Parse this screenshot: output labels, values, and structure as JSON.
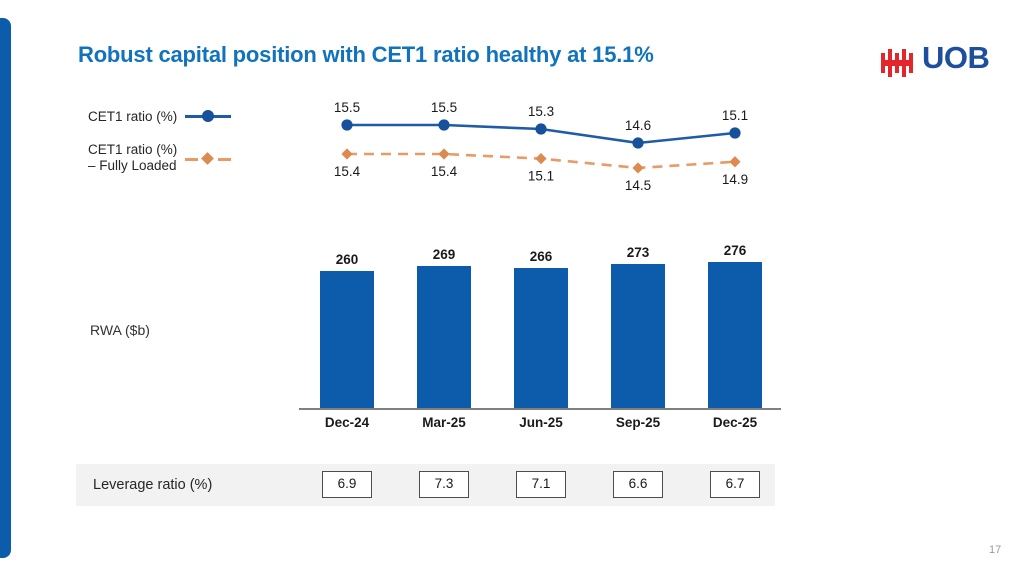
{
  "slide": {
    "title": "Robust capital position with CET1 ratio healthy at 15.1%",
    "page_number": "17",
    "accent_color": "#0c5cab",
    "title_color": "#1273bc"
  },
  "logo": {
    "text": "UOB",
    "mark": "uob-tally-bars-mark",
    "text_color": "#1d4f9e",
    "mark_color": "#e4262c"
  },
  "legend": {
    "cet1": {
      "label": "CET1 ratio (%)",
      "color": "#1e5ca6",
      "marker": "circle",
      "line": "solid"
    },
    "fully_loaded": {
      "label_line1": "CET1 ratio (%)",
      "label_line2": "– Fully Loaded",
      "color": "#e99b66",
      "marker": "diamond",
      "line": "dashed"
    }
  },
  "chart_data": [
    {
      "type": "line",
      "categories": [
        "Dec-24",
        "Mar-25",
        "Jun-25",
        "Sep-25",
        "Dec-25"
      ],
      "series": [
        {
          "name": "CET1 ratio (%)",
          "values": [
            15.5,
            15.5,
            15.3,
            14.6,
            15.1
          ],
          "color": "#1e5ca6",
          "marker_color": "#17519c",
          "line": "solid",
          "marker": "circle",
          "label_position": "above"
        },
        {
          "name": "CET1 ratio (%) – Fully Loaded",
          "values": [
            15.4,
            15.4,
            15.1,
            14.5,
            14.9
          ],
          "color": "#e99b66",
          "marker_color": "#dd8a50",
          "line": "dashed",
          "marker": "diamond",
          "label_position": "below"
        }
      ],
      "axes_hidden": true,
      "data_labels": true,
      "legend_position": "left"
    },
    {
      "type": "bar",
      "title": "RWA ($b)",
      "categories": [
        "Dec-24",
        "Mar-25",
        "Jun-25",
        "Sep-25",
        "Dec-25"
      ],
      "values": [
        260,
        269,
        266,
        273,
        276
      ],
      "color": "#0c5cab",
      "ylim": [
        0,
        300
      ],
      "data_labels": true,
      "grid": false
    },
    {
      "type": "table",
      "label": "Leverage ratio (%)",
      "categories": [
        "Dec-24",
        "Mar-25",
        "Jun-25",
        "Sep-25",
        "Dec-25"
      ],
      "values": [
        "6.9",
        "7.3",
        "7.1",
        "6.6",
        "6.7"
      ]
    }
  ]
}
